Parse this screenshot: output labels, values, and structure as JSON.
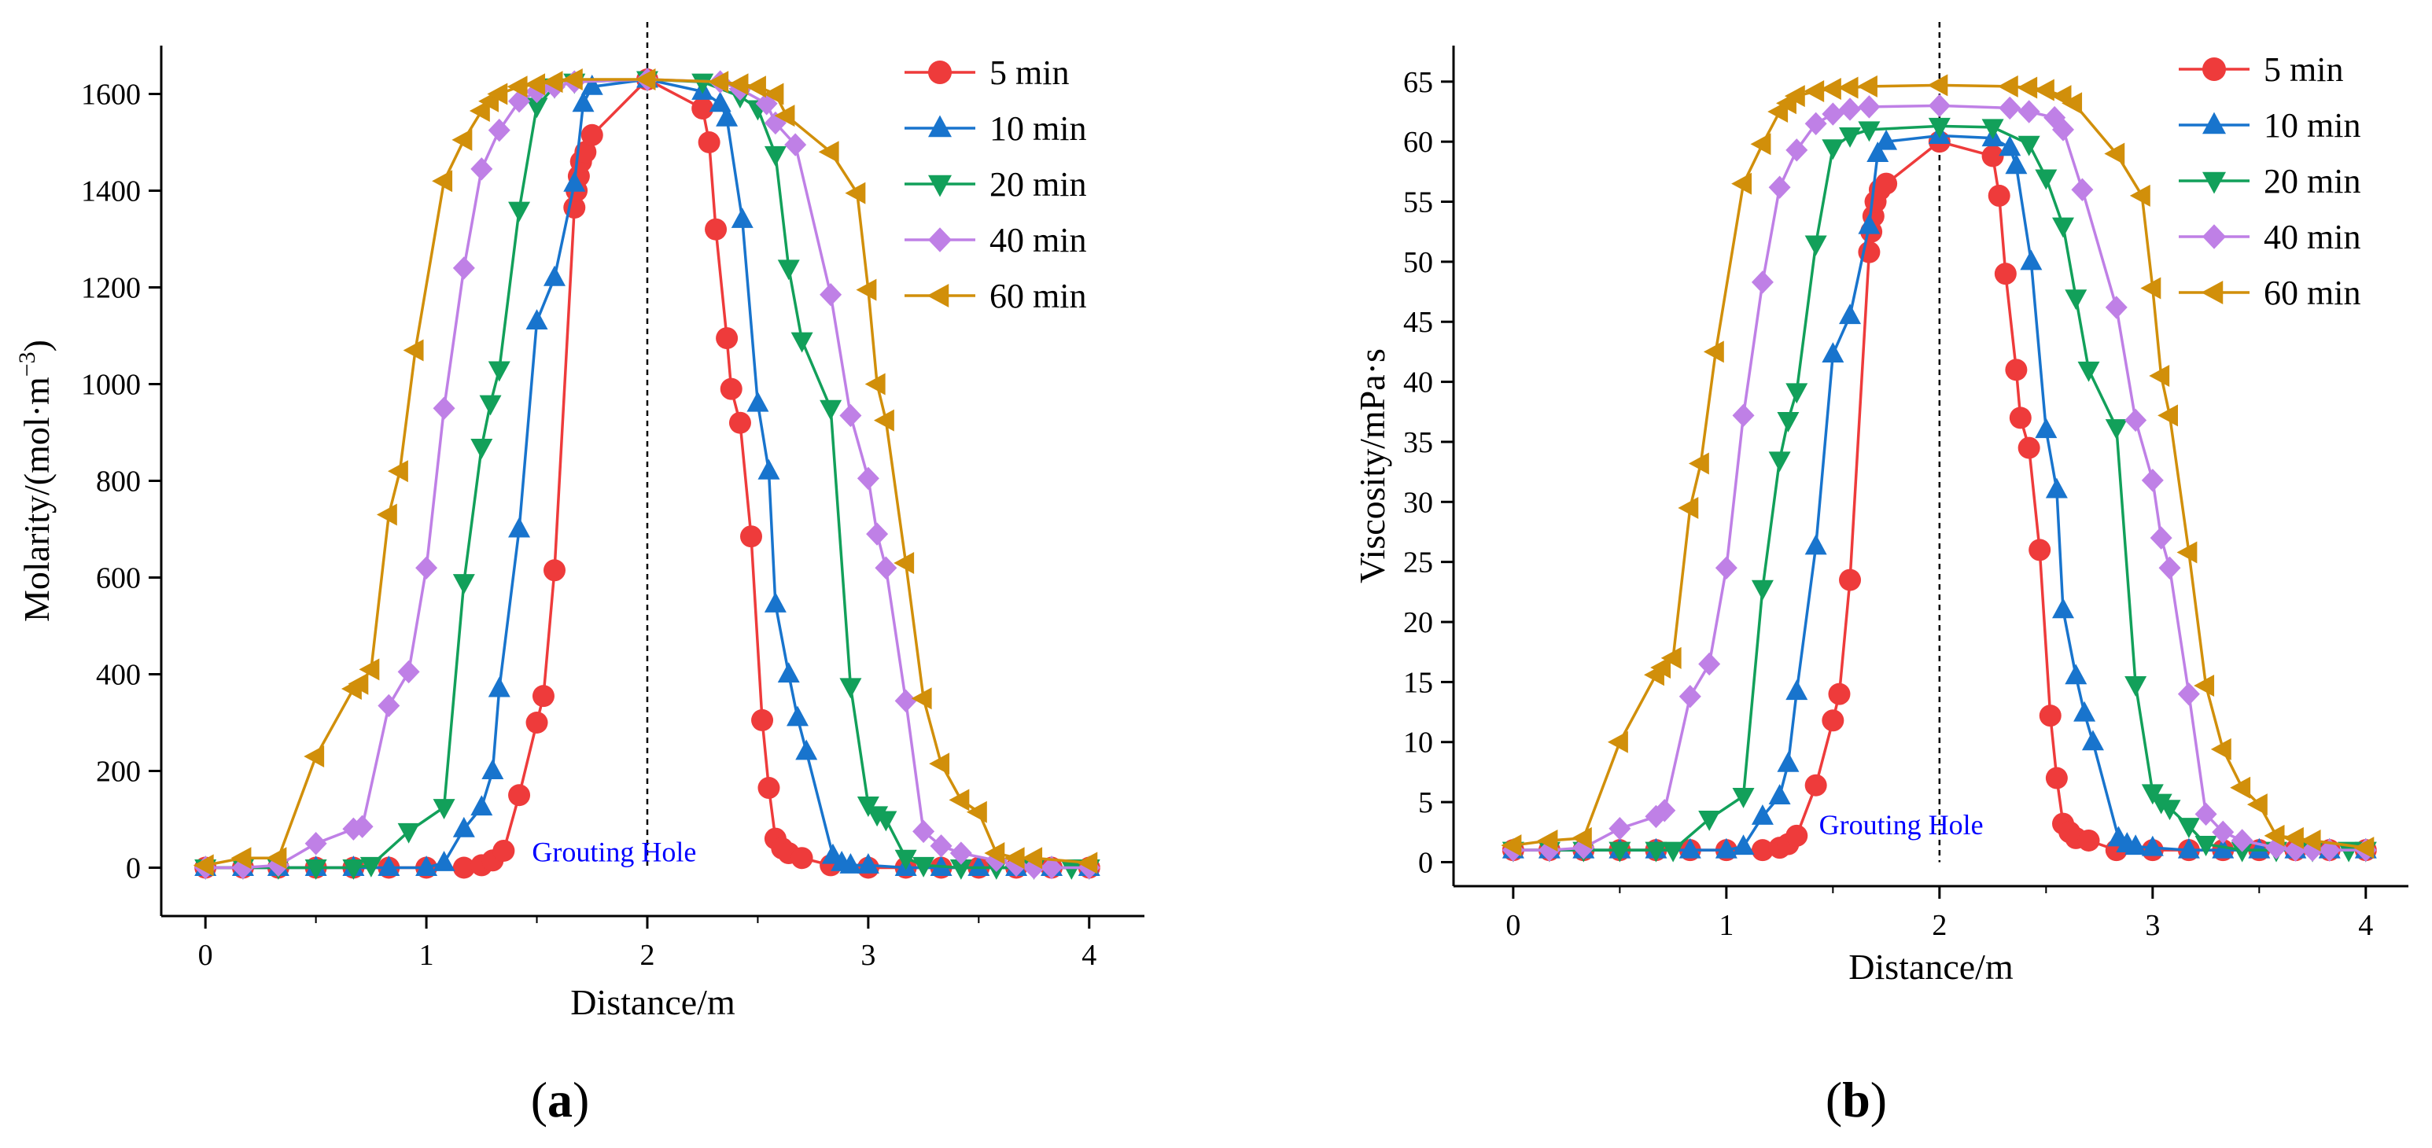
{
  "colors": {
    "s5": "#EE3B3B",
    "s10": "#1874CD",
    "s20": "#12A05A",
    "s40": "#BF80E6",
    "s60": "#D18F0A",
    "annotation": "#0000FF",
    "axis": "#000000"
  },
  "markers": {
    "5 min": "circle",
    "10 min": "triangle-up",
    "20 min": "triangle-down",
    "40 min": "diamond",
    "60 min": "triangle-left"
  },
  "chart_data": [
    {
      "panel_label": "(a)",
      "type": "line",
      "xlabel": "Distance/m",
      "ylabel": "Molarity/(mol·m",
      "ylabel_sup": "−3",
      "ylabel_tail": ")",
      "xlim": [
        -0.2,
        4.25
      ],
      "ylim": [
        -100,
        1700
      ],
      "xticks": [
        "0",
        "1",
        "2",
        "3",
        "4"
      ],
      "yticks": [
        "0",
        "200",
        "400",
        "600",
        "800",
        "1000",
        "1200",
        "1400",
        "1600"
      ],
      "annotation": "Grouting Hole",
      "annotation_at": [
        1.85,
        0
      ],
      "dashed_line_x": 2,
      "legend_position": "top-right",
      "series": [
        {
          "name": "5 min",
          "x": [
            0,
            0.17,
            0.33,
            0.5,
            0.67,
            0.83,
            1.0,
            1.17,
            1.25,
            1.3,
            1.35,
            1.42,
            1.5,
            1.53,
            1.58,
            1.67,
            1.68,
            1.69,
            1.7,
            1.72,
            1.75,
            2.0,
            2.25,
            2.28,
            2.31,
            2.36,
            2.38,
            2.42,
            2.47,
            2.52,
            2.55,
            2.58,
            2.61,
            2.64,
            2.7,
            2.83,
            3.0,
            3.17,
            3.33,
            3.5,
            3.67,
            3.83,
            4.0
          ],
          "y": [
            0,
            0,
            0,
            0,
            0,
            0,
            0,
            0,
            5,
            15,
            35,
            150,
            300,
            355,
            615,
            1365,
            1400,
            1430,
            1460,
            1480,
            1515,
            1630,
            1570,
            1500,
            1320,
            1095,
            990,
            920,
            685,
            305,
            165,
            60,
            40,
            30,
            20,
            5,
            0,
            0,
            0,
            0,
            0,
            0,
            0
          ]
        },
        {
          "name": "10 min",
          "x": [
            0,
            0.17,
            0.33,
            0.5,
            0.67,
            0.83,
            1.0,
            1.08,
            1.17,
            1.25,
            1.3,
            1.33,
            1.42,
            1.5,
            1.58,
            1.67,
            1.71,
            1.75,
            2.0,
            2.25,
            2.33,
            2.36,
            2.43,
            2.5,
            2.55,
            2.58,
            2.64,
            2.68,
            2.72,
            2.84,
            2.88,
            2.92,
            3.0,
            3.17,
            3.33,
            3.5,
            3.67,
            3.83,
            4.0
          ],
          "y": [
            0,
            0,
            0,
            0,
            0,
            0,
            0,
            10,
            80,
            125,
            200,
            370,
            700,
            1130,
            1220,
            1415,
            1580,
            1615,
            1630,
            1605,
            1580,
            1550,
            1340,
            960,
            820,
            545,
            400,
            310,
            240,
            25,
            10,
            5,
            5,
            0,
            0,
            0,
            0,
            0,
            0
          ]
        },
        {
          "name": "20 min",
          "x": [
            0,
            0.17,
            0.33,
            0.5,
            0.67,
            0.75,
            0.92,
            1.08,
            1.17,
            1.25,
            1.29,
            1.33,
            1.42,
            1.5,
            1.58,
            1.67,
            2.0,
            2.25,
            2.42,
            2.5,
            2.58,
            2.64,
            2.7,
            2.83,
            2.92,
            3.0,
            3.04,
            3.08,
            3.17,
            3.25,
            3.42,
            3.58,
            3.75,
            3.92,
            4.0
          ],
          "y": [
            0,
            0,
            0,
            0,
            0,
            5,
            75,
            125,
            590,
            870,
            960,
            1030,
            1360,
            1575,
            1615,
            1625,
            1630,
            1625,
            1595,
            1570,
            1475,
            1240,
            1090,
            950,
            375,
            130,
            110,
            100,
            20,
            5,
            0,
            0,
            0,
            0,
            0
          ]
        },
        {
          "name": "40 min",
          "x": [
            0,
            0.17,
            0.33,
            0.5,
            0.67,
            0.71,
            0.83,
            0.92,
            1.0,
            1.08,
            1.17,
            1.25,
            1.33,
            1.42,
            1.5,
            1.58,
            1.67,
            2.0,
            2.33,
            2.42,
            2.54,
            2.58,
            2.67,
            2.83,
            2.92,
            3.0,
            3.04,
            3.08,
            3.17,
            3.25,
            3.33,
            3.42,
            3.58,
            3.67,
            3.75,
            3.83,
            4.0
          ],
          "y": [
            0,
            0,
            5,
            50,
            80,
            85,
            335,
            405,
            620,
            950,
            1240,
            1445,
            1525,
            1585,
            1605,
            1615,
            1625,
            1630,
            1625,
            1610,
            1580,
            1540,
            1495,
            1185,
            935,
            805,
            690,
            620,
            345,
            75,
            45,
            30,
            15,
            5,
            0,
            0,
            0
          ]
        },
        {
          "name": "60 min",
          "x": [
            0,
            0.17,
            0.33,
            0.5,
            0.67,
            0.7,
            0.75,
            0.83,
            0.88,
            0.95,
            1.08,
            1.17,
            1.25,
            1.29,
            1.33,
            1.42,
            1.5,
            1.58,
            1.67,
            2.0,
            2.33,
            2.42,
            2.5,
            2.58,
            2.63,
            2.83,
            2.95,
            3.0,
            3.04,
            3.08,
            3.17,
            3.25,
            3.33,
            3.42,
            3.5,
            3.58,
            3.67,
            3.75,
            4.0
          ],
          "y": [
            5,
            20,
            20,
            230,
            370,
            380,
            410,
            730,
            820,
            1070,
            1420,
            1505,
            1565,
            1585,
            1600,
            1615,
            1620,
            1625,
            1630,
            1630,
            1625,
            1620,
            1615,
            1600,
            1555,
            1480,
            1395,
            1195,
            1000,
            925,
            630,
            350,
            215,
            140,
            115,
            30,
            20,
            20,
            10
          ]
        }
      ]
    },
    {
      "panel_label": "(b)",
      "type": "line",
      "xlabel": "Distance/m",
      "ylabel": "Viscosity/mPa·s",
      "xlim": [
        -0.28,
        4.2
      ],
      "ylim": [
        -2,
        68
      ],
      "xticks": [
        "0",
        "1",
        "2",
        "3",
        "4"
      ],
      "yticks": [
        "0",
        "5",
        "10",
        "15",
        "20",
        "25",
        "30",
        "35",
        "40",
        "45",
        "50",
        "55",
        "60",
        "65"
      ],
      "annotation": "Grouting Hole",
      "annotation_at": [
        1.82,
        1.8
      ],
      "dashed_line_x": 2,
      "legend_position": "top-right",
      "series": [
        {
          "name": "5 min",
          "x": [
            0,
            0.17,
            0.33,
            0.5,
            0.67,
            0.83,
            1.0,
            1.17,
            1.25,
            1.29,
            1.33,
            1.42,
            1.5,
            1.53,
            1.58,
            1.67,
            1.68,
            1.69,
            1.7,
            1.72,
            1.75,
            2.0,
            2.25,
            2.28,
            2.31,
            2.36,
            2.38,
            2.42,
            2.47,
            2.52,
            2.55,
            2.58,
            2.61,
            2.64,
            2.7,
            2.83,
            3.0,
            3.17,
            3.33,
            3.5,
            3.67,
            3.83,
            4.0
          ],
          "y": [
            1,
            1,
            1,
            1,
            1,
            1,
            1,
            1,
            1.2,
            1.5,
            2.2,
            6.4,
            11.8,
            14,
            23.5,
            50.8,
            52.5,
            53.8,
            55,
            56,
            56.5,
            60,
            58.8,
            55.5,
            49,
            41,
            37,
            34.5,
            26,
            12.2,
            7,
            3.2,
            2.5,
            2,
            1.8,
            1,
            1,
            1,
            1,
            1,
            1,
            1,
            1
          ]
        },
        {
          "name": "10 min",
          "x": [
            0,
            0.17,
            0.33,
            0.5,
            0.67,
            0.83,
            1.0,
            1.08,
            1.17,
            1.25,
            1.29,
            1.33,
            1.42,
            1.5,
            1.58,
            1.67,
            1.71,
            1.75,
            2.0,
            2.25,
            2.33,
            2.36,
            2.43,
            2.5,
            2.55,
            2.58,
            2.64,
            2.68,
            2.72,
            2.84,
            2.88,
            2.92,
            3.0,
            3.17,
            3.33,
            3.5,
            3.67,
            3.83,
            4.0
          ],
          "y": [
            1,
            1,
            1,
            1,
            1,
            1,
            1,
            1.3,
            3.8,
            5.5,
            8.2,
            14.2,
            26.3,
            42.3,
            45.5,
            53,
            59,
            60,
            60.5,
            60.3,
            59.5,
            58,
            50,
            36,
            31,
            21,
            15.5,
            12.4,
            10,
            2,
            1.5,
            1.3,
            1.2,
            1,
            1,
            1,
            1,
            1,
            1
          ]
        },
        {
          "name": "20 min",
          "x": [
            0,
            0.17,
            0.33,
            0.5,
            0.67,
            0.75,
            0.92,
            1.08,
            1.17,
            1.25,
            1.29,
            1.33,
            1.42,
            1.5,
            1.58,
            1.67,
            2.0,
            2.25,
            2.42,
            2.5,
            2.58,
            2.64,
            2.7,
            2.83,
            2.92,
            3.0,
            3.04,
            3.08,
            3.17,
            3.25,
            3.42,
            3.58,
            3.75,
            3.92,
            4.0
          ],
          "y": [
            1,
            1,
            1,
            1,
            1,
            1,
            3.6,
            5.5,
            22.8,
            33.5,
            36.8,
            39.2,
            51.5,
            59.5,
            60.5,
            61,
            61.3,
            61.2,
            59.8,
            57,
            53,
            47,
            41,
            36.2,
            14.8,
            5.8,
            5,
            4.5,
            3,
            1.5,
            1,
            1,
            1,
            1,
            1
          ]
        },
        {
          "name": "40 min",
          "x": [
            0,
            0.17,
            0.33,
            0.5,
            0.67,
            0.71,
            0.83,
            0.92,
            1.0,
            1.08,
            1.17,
            1.25,
            1.33,
            1.42,
            1.5,
            1.58,
            1.67,
            2.0,
            2.33,
            2.42,
            2.54,
            2.58,
            2.67,
            2.83,
            2.92,
            3.0,
            3.04,
            3.08,
            3.17,
            3.25,
            3.33,
            3.42,
            3.58,
            3.67,
            3.75,
            3.83,
            4.0
          ],
          "y": [
            1,
            1,
            1.2,
            2.8,
            3.8,
            4.3,
            13.8,
            16.5,
            24.5,
            37.2,
            48.3,
            56.2,
            59.3,
            61.5,
            62.3,
            62.7,
            62.9,
            63,
            62.8,
            62.5,
            62,
            61,
            56,
            46.2,
            36.8,
            31.8,
            27,
            24.5,
            14,
            4,
            2.5,
            1.8,
            1.2,
            1,
            1,
            1,
            1
          ]
        },
        {
          "name": "60 min",
          "x": [
            0,
            0.17,
            0.33,
            0.5,
            0.67,
            0.7,
            0.75,
            0.83,
            0.88,
            0.95,
            1.08,
            1.17,
            1.25,
            1.29,
            1.33,
            1.42,
            1.5,
            1.58,
            1.67,
            2.0,
            2.33,
            2.42,
            2.5,
            2.58,
            2.63,
            2.83,
            2.95,
            3.0,
            3.04,
            3.08,
            3.17,
            3.25,
            3.33,
            3.42,
            3.5,
            3.58,
            3.67,
            3.75,
            4.0
          ],
          "y": [
            1.4,
            1.8,
            2,
            10,
            15.6,
            16.2,
            17,
            29.5,
            33.2,
            42.5,
            56.5,
            59.8,
            62.5,
            63.2,
            63.8,
            64.2,
            64.4,
            64.5,
            64.6,
            64.7,
            64.6,
            64.5,
            64.3,
            63.8,
            63.2,
            59,
            55.5,
            47.8,
            40.5,
            37.2,
            25.8,
            14.7,
            9.4,
            6.2,
            4.8,
            2.2,
            2,
            1.8,
            1.2
          ]
        }
      ]
    }
  ]
}
